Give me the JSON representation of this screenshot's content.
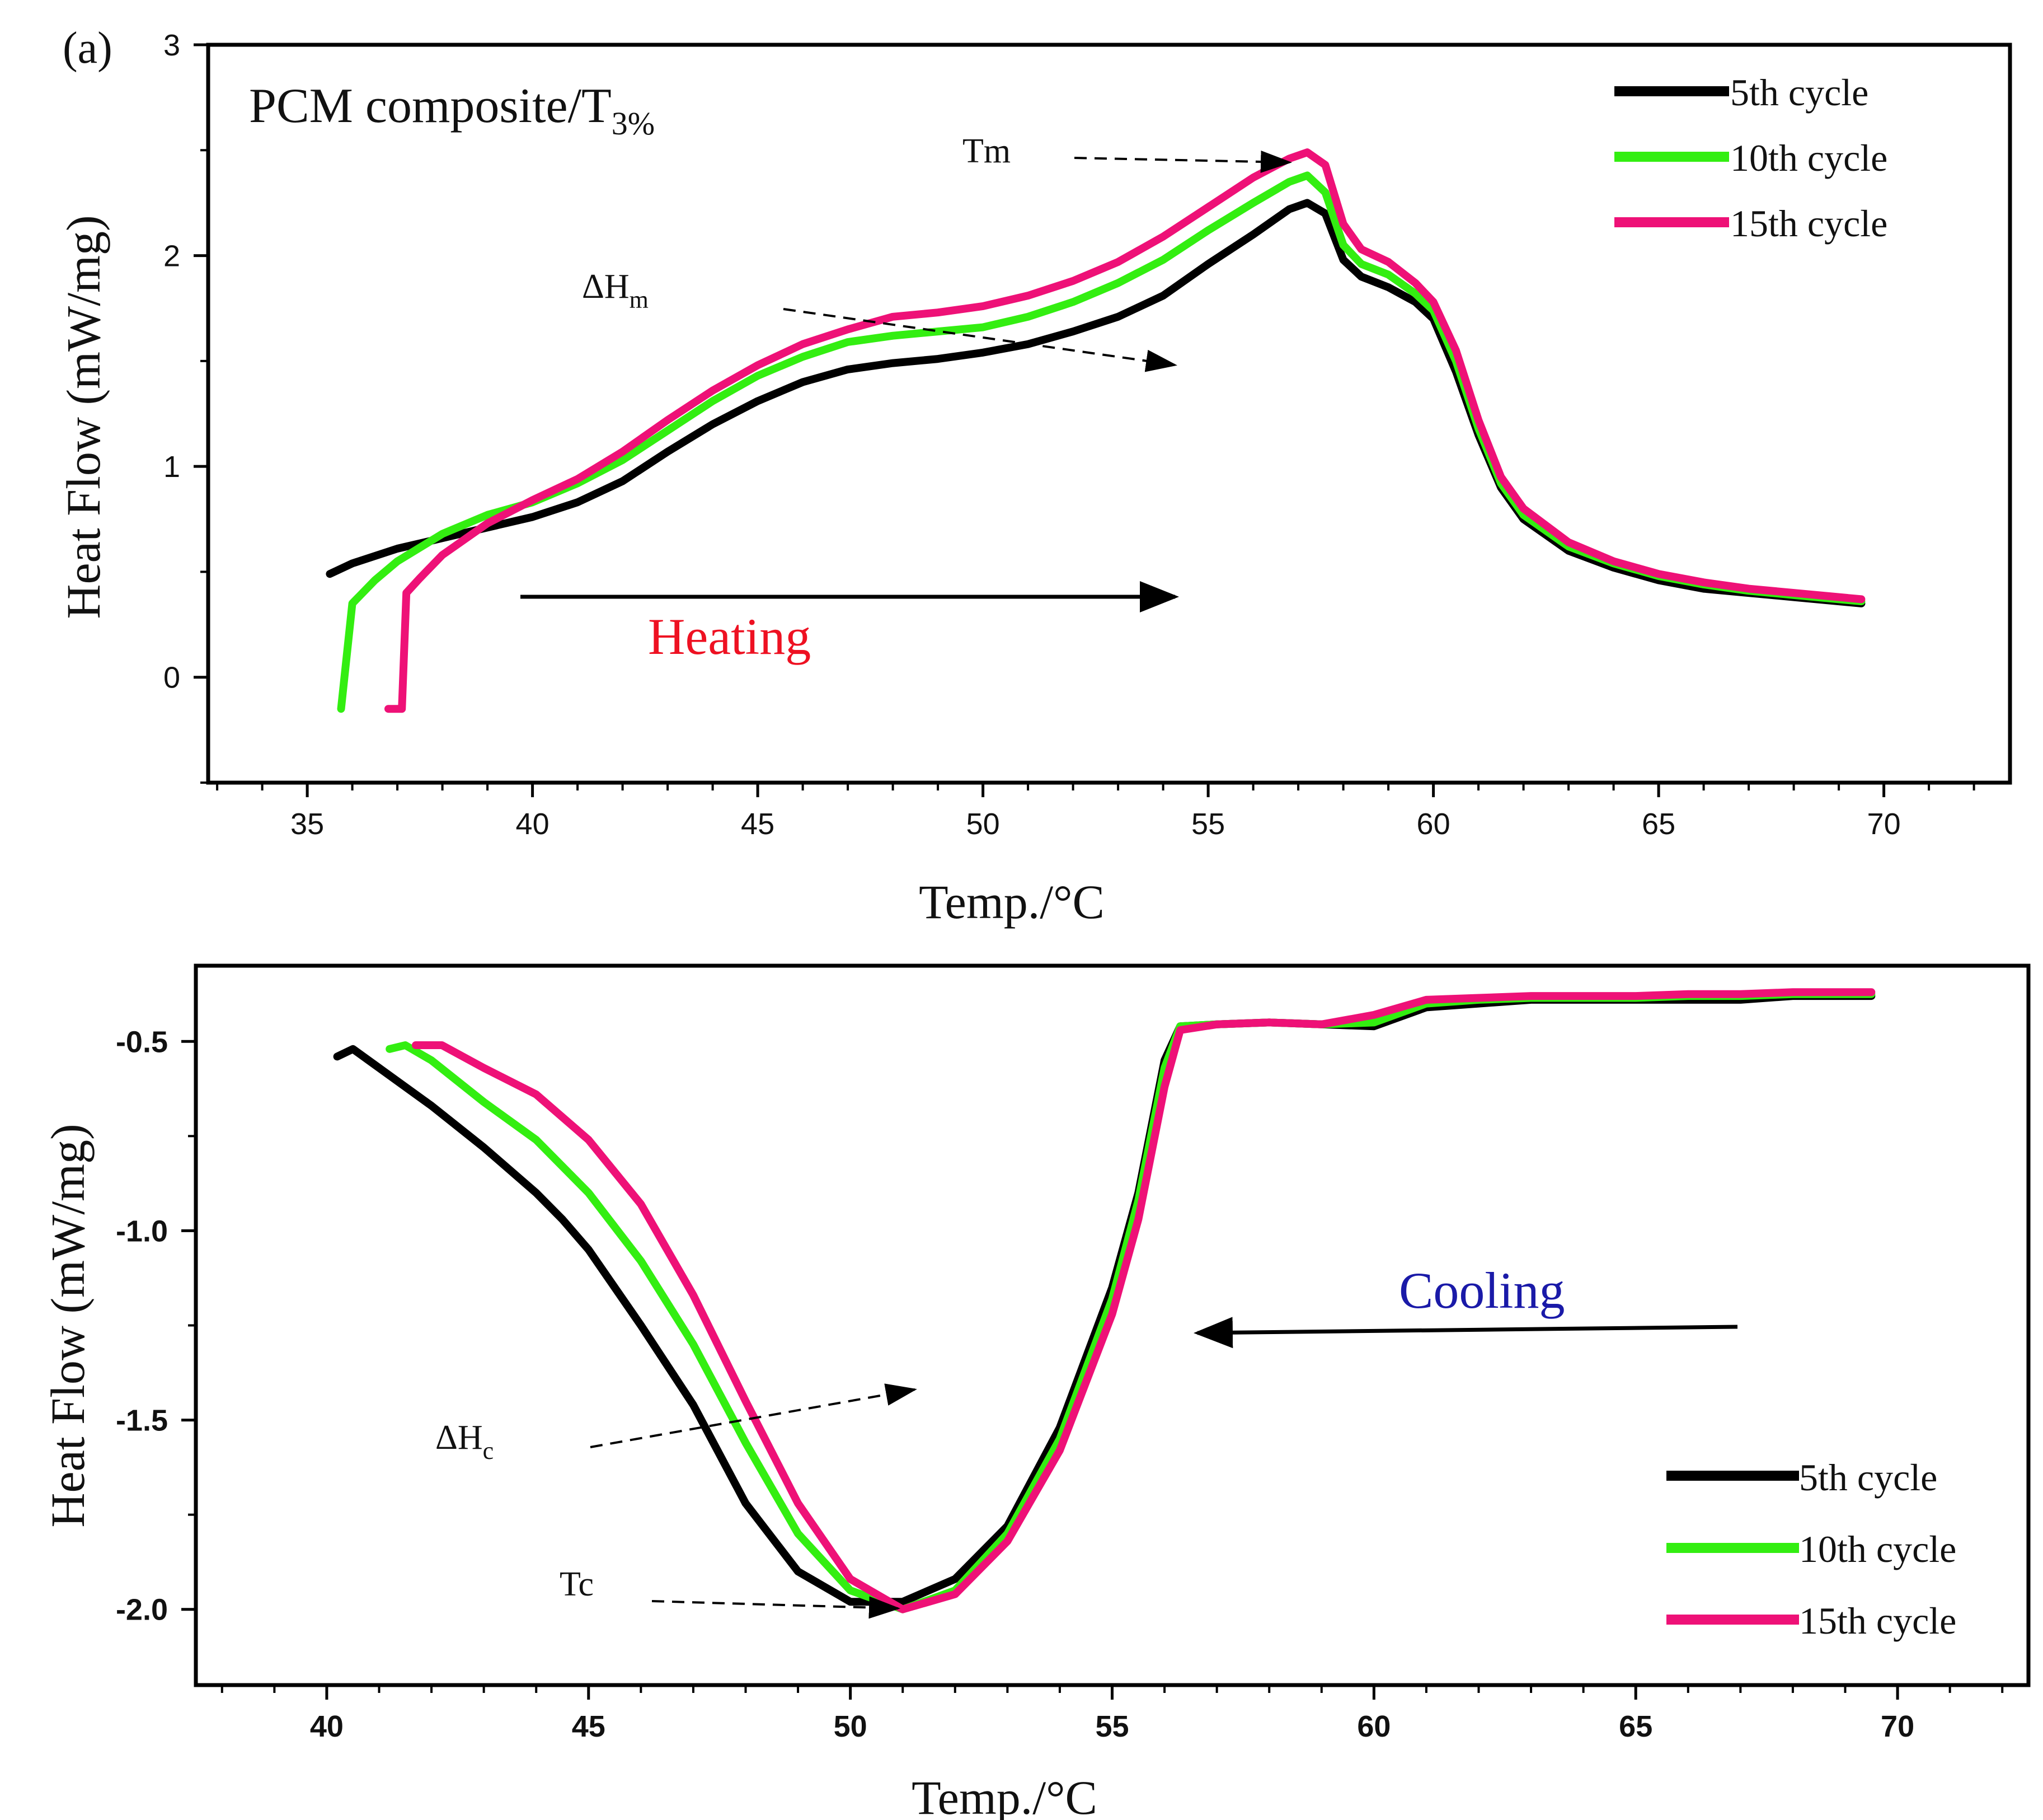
{
  "chart_data": [
    {
      "type": "line",
      "panel_label": "(a)",
      "title": "PCM composite/T3%",
      "title_main": "PCM composite/T",
      "title_sub": "3%",
      "xlabel": "Temp./°C",
      "ylabel": "Heat Flow (mW/mg)",
      "xlim": [
        32.8,
        72.8
      ],
      "ylim": [
        -0.5,
        3.0
      ],
      "xticks": [
        "35",
        "40",
        "45",
        "50",
        "55",
        "60",
        "65",
        "70"
      ],
      "yticks": [
        "0",
        "1",
        "2",
        "3"
      ],
      "legend_position": "top-right",
      "series": [
        {
          "name": "5th cycle",
          "color": "#000000",
          "points": [
            [
              35.5,
              0.49
            ],
            [
              36,
              0.54
            ],
            [
              37,
              0.61
            ],
            [
              38,
              0.66
            ],
            [
              39,
              0.71
            ],
            [
              40,
              0.76
            ],
            [
              41,
              0.83
            ],
            [
              42,
              0.93
            ],
            [
              43,
              1.07
            ],
            [
              44,
              1.2
            ],
            [
              45,
              1.31
            ],
            [
              46,
              1.4
            ],
            [
              47,
              1.46
            ],
            [
              48,
              1.49
            ],
            [
              49,
              1.51
            ],
            [
              50,
              1.54
            ],
            [
              51,
              1.58
            ],
            [
              52,
              1.64
            ],
            [
              53,
              1.71
            ],
            [
              54,
              1.81
            ],
            [
              55,
              1.96
            ],
            [
              56,
              2.1
            ],
            [
              56.8,
              2.22
            ],
            [
              57.2,
              2.25
            ],
            [
              57.6,
              2.2
            ],
            [
              58,
              1.98
            ],
            [
              58.4,
              1.9
            ],
            [
              59,
              1.85
            ],
            [
              59.6,
              1.78
            ],
            [
              60,
              1.7
            ],
            [
              60.5,
              1.45
            ],
            [
              61,
              1.15
            ],
            [
              61.5,
              0.9
            ],
            [
              62,
              0.75
            ],
            [
              63,
              0.6
            ],
            [
              64,
              0.52
            ],
            [
              65,
              0.46
            ],
            [
              66,
              0.42
            ],
            [
              67,
              0.4
            ],
            [
              68,
              0.38
            ],
            [
              69.5,
              0.35
            ]
          ]
        },
        {
          "name": "10th cycle",
          "color": "#33ee11",
          "points": [
            [
              35.75,
              -0.15
            ],
            [
              36,
              0.35
            ],
            [
              36.5,
              0.46
            ],
            [
              37,
              0.55
            ],
            [
              38,
              0.68
            ],
            [
              39,
              0.77
            ],
            [
              40,
              0.83
            ],
            [
              41,
              0.92
            ],
            [
              42,
              1.03
            ],
            [
              43,
              1.17
            ],
            [
              44,
              1.31
            ],
            [
              45,
              1.43
            ],
            [
              46,
              1.52
            ],
            [
              47,
              1.59
            ],
            [
              48,
              1.62
            ],
            [
              49,
              1.64
            ],
            [
              50,
              1.66
            ],
            [
              51,
              1.71
            ],
            [
              52,
              1.78
            ],
            [
              53,
              1.87
            ],
            [
              54,
              1.98
            ],
            [
              55,
              2.12
            ],
            [
              56,
              2.25
            ],
            [
              56.8,
              2.35
            ],
            [
              57.2,
              2.38
            ],
            [
              57.6,
              2.3
            ],
            [
              58,
              2.05
            ],
            [
              58.4,
              1.96
            ],
            [
              59,
              1.91
            ],
            [
              59.6,
              1.82
            ],
            [
              60,
              1.74
            ],
            [
              60.5,
              1.5
            ],
            [
              61,
              1.18
            ],
            [
              61.5,
              0.92
            ],
            [
              62,
              0.77
            ],
            [
              63,
              0.62
            ],
            [
              64,
              0.54
            ],
            [
              65,
              0.48
            ],
            [
              66,
              0.44
            ],
            [
              67,
              0.41
            ],
            [
              68,
              0.39
            ],
            [
              69.5,
              0.36
            ]
          ]
        },
        {
          "name": "15th cycle",
          "color": "#ee1177",
          "points": [
            [
              36.8,
              -0.15
            ],
            [
              37.1,
              -0.15
            ],
            [
              37.2,
              0.4
            ],
            [
              37.5,
              0.47
            ],
            [
              38,
              0.58
            ],
            [
              39,
              0.73
            ],
            [
              40,
              0.84
            ],
            [
              41,
              0.94
            ],
            [
              42,
              1.07
            ],
            [
              43,
              1.22
            ],
            [
              44,
              1.36
            ],
            [
              45,
              1.48
            ],
            [
              46,
              1.58
            ],
            [
              47,
              1.65
            ],
            [
              48,
              1.71
            ],
            [
              49,
              1.73
            ],
            [
              50,
              1.76
            ],
            [
              51,
              1.81
            ],
            [
              52,
              1.88
            ],
            [
              53,
              1.97
            ],
            [
              54,
              2.09
            ],
            [
              55,
              2.23
            ],
            [
              56,
              2.37
            ],
            [
              56.8,
              2.46
            ],
            [
              57.2,
              2.49
            ],
            [
              57.6,
              2.43
            ],
            [
              58,
              2.15
            ],
            [
              58.4,
              2.03
            ],
            [
              59,
              1.97
            ],
            [
              59.6,
              1.87
            ],
            [
              60,
              1.78
            ],
            [
              60.5,
              1.55
            ],
            [
              61,
              1.22
            ],
            [
              61.5,
              0.95
            ],
            [
              62,
              0.8
            ],
            [
              63,
              0.64
            ],
            [
              64,
              0.55
            ],
            [
              65,
              0.49
            ],
            [
              66,
              0.45
            ],
            [
              67,
              0.42
            ],
            [
              68,
              0.4
            ],
            [
              69.5,
              0.37
            ]
          ]
        }
      ],
      "annotations": {
        "tm": "Tm",
        "dh_main": "ΔH",
        "dh_sub": "m",
        "direction": "Heating",
        "direction_color": "#ee1122"
      }
    },
    {
      "type": "line",
      "xlabel": "Temp./°C",
      "ylabel": "Heat Flow (mW/mg)",
      "xlim": [
        37.5,
        72.5
      ],
      "ylim": [
        -2.2,
        -0.3
      ],
      "xticks": [
        "40",
        "45",
        "50",
        "55",
        "60",
        "65",
        "70"
      ],
      "yticks": [
        "-0.5",
        "-1.0",
        "-1.5",
        "-2.0"
      ],
      "legend_position": "bottom-right",
      "series": [
        {
          "name": "5th cycle",
          "color": "#000000",
          "points": [
            [
              40.2,
              -0.54
            ],
            [
              40.5,
              -0.52
            ],
            [
              41,
              -0.57
            ],
            [
              42,
              -0.67
            ],
            [
              43,
              -0.78
            ],
            [
              44,
              -0.9
            ],
            [
              44.5,
              -0.97
            ],
            [
              45,
              -1.05
            ],
            [
              46,
              -1.25
            ],
            [
              47,
              -1.46
            ],
            [
              48,
              -1.72
            ],
            [
              49,
              -1.9
            ],
            [
              50,
              -1.98
            ],
            [
              51,
              -1.98
            ],
            [
              52,
              -1.92
            ],
            [
              53,
              -1.78
            ],
            [
              54,
              -1.52
            ],
            [
              55,
              -1.15
            ],
            [
              55.5,
              -0.9
            ],
            [
              56,
              -0.55
            ],
            [
              56.3,
              -0.46
            ],
            [
              57,
              -0.455
            ],
            [
              58,
              -0.45
            ],
            [
              59,
              -0.455
            ],
            [
              60,
              -0.46
            ],
            [
              61,
              -0.41
            ],
            [
              62,
              -0.4
            ],
            [
              63,
              -0.39
            ],
            [
              64,
              -0.39
            ],
            [
              65,
              -0.39
            ],
            [
              66,
              -0.39
            ],
            [
              67,
              -0.39
            ],
            [
              68,
              -0.38
            ],
            [
              69.5,
              -0.38
            ]
          ]
        },
        {
          "name": "10th cycle",
          "color": "#33ee11",
          "points": [
            [
              41.2,
              -0.52
            ],
            [
              41.5,
              -0.51
            ],
            [
              42,
              -0.55
            ],
            [
              43,
              -0.66
            ],
            [
              44,
              -0.76
            ],
            [
              45,
              -0.9
            ],
            [
              46,
              -1.08
            ],
            [
              47,
              -1.3
            ],
            [
              48,
              -1.56
            ],
            [
              49,
              -1.8
            ],
            [
              50,
              -1.95
            ],
            [
              51,
              -2.0
            ],
            [
              52,
              -1.95
            ],
            [
              53,
              -1.8
            ],
            [
              54,
              -1.55
            ],
            [
              55,
              -1.18
            ],
            [
              55.5,
              -0.92
            ],
            [
              56,
              -0.57
            ],
            [
              56.3,
              -0.46
            ],
            [
              57,
              -0.455
            ],
            [
              58,
              -0.45
            ],
            [
              59,
              -0.455
            ],
            [
              60,
              -0.45
            ],
            [
              61,
              -0.4
            ],
            [
              62,
              -0.39
            ],
            [
              63,
              -0.385
            ],
            [
              64,
              -0.385
            ],
            [
              65,
              -0.385
            ],
            [
              66,
              -0.38
            ],
            [
              67,
              -0.38
            ],
            [
              68,
              -0.375
            ],
            [
              69.5,
              -0.375
            ]
          ]
        },
        {
          "name": "15th cycle",
          "color": "#ee1177",
          "points": [
            [
              41.7,
              -0.51
            ],
            [
              42.2,
              -0.51
            ],
            [
              43,
              -0.57
            ],
            [
              44,
              -0.64
            ],
            [
              45,
              -0.76
            ],
            [
              46,
              -0.93
            ],
            [
              47,
              -1.17
            ],
            [
              48,
              -1.45
            ],
            [
              49,
              -1.72
            ],
            [
              50,
              -1.92
            ],
            [
              51,
              -2.0
            ],
            [
              52,
              -1.96
            ],
            [
              53,
              -1.82
            ],
            [
              54,
              -1.58
            ],
            [
              55,
              -1.22
            ],
            [
              55.5,
              -0.97
            ],
            [
              56,
              -0.62
            ],
            [
              56.3,
              -0.47
            ],
            [
              57,
              -0.455
            ],
            [
              58,
              -0.45
            ],
            [
              59,
              -0.455
            ],
            [
              60,
              -0.43
            ],
            [
              61,
              -0.39
            ],
            [
              62,
              -0.385
            ],
            [
              63,
              -0.38
            ],
            [
              64,
              -0.38
            ],
            [
              65,
              -0.38
            ],
            [
              66,
              -0.375
            ],
            [
              67,
              -0.375
            ],
            [
              68,
              -0.37
            ],
            [
              69.5,
              -0.37
            ]
          ]
        }
      ],
      "annotations": {
        "tc": "Tc",
        "dh_main": "ΔH",
        "dh_sub": "c",
        "direction": "Cooling",
        "direction_color": "#1a1aa8"
      }
    }
  ]
}
